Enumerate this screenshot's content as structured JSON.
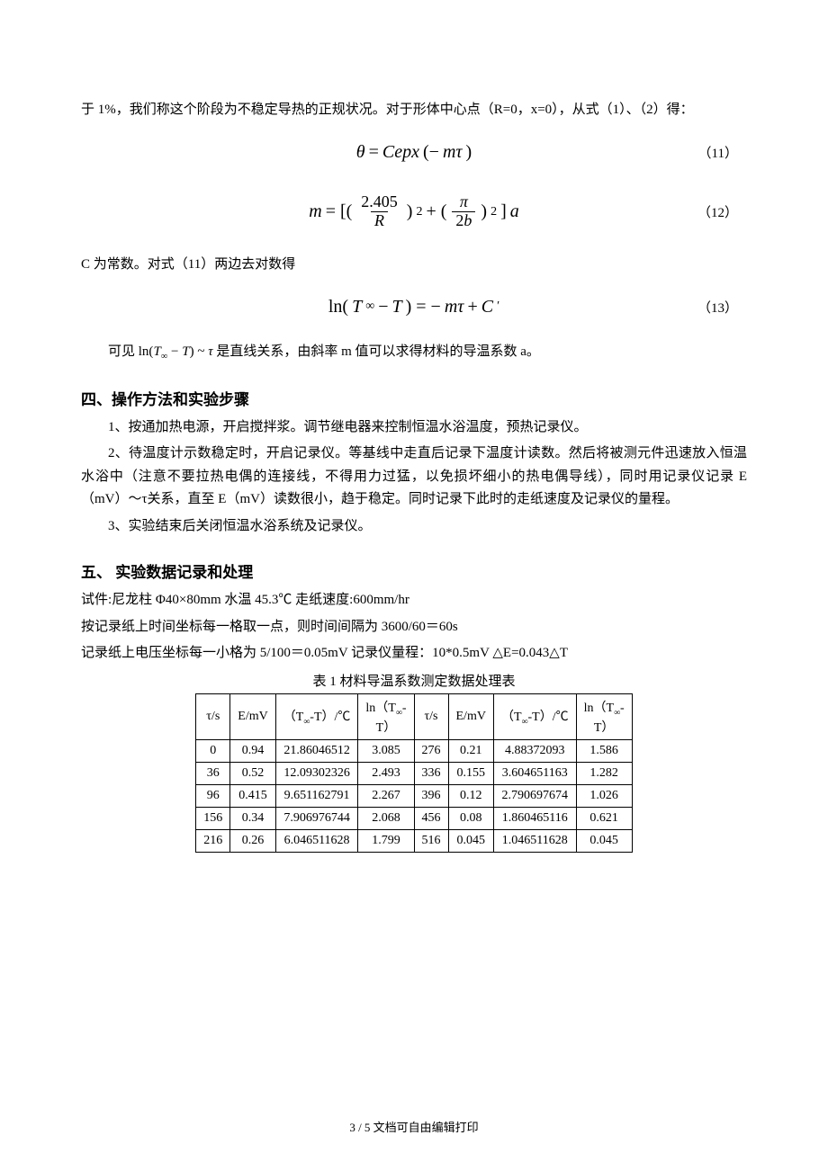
{
  "intro": {
    "p1": "于 1%，我们称这个阶段为不稳定导热的正规状况。对于形体中心点（R=0，x=0），从式（1）、（2）得：",
    "eq11_num": "（11）",
    "eq12_num": "（12）",
    "p2": "C 为常数。对式（11）两边去对数得",
    "eq13_num": "（13）",
    "p3_prefix": "可见",
    "p3_suffix": "是直线关系，由斜率 m 值可以求得材料的导温系数 a。"
  },
  "section4": {
    "title": "四、操作方法和实验步骤",
    "p1": "1、按通加热电源，开启搅拌浆。调节继电器来控制恒温水浴温度，预热记录仪。",
    "p2": "2、待温度计示数稳定时，开启记录仪。等基线中走直后记录下温度计读数。然后将被测元件迅速放入恒温水浴中（注意不要拉热电偶的连接线，不得用力过猛，以免损坏细小的热电偶导线），同时用记录仪记录 E（mV）～τ关系，直至 E（mV）读数很小，趋于稳定。同时记录下此时的走纸速度及记录仪的量程。",
    "p3": "3、实验结束后关闭恒温水浴系统及记录仪。"
  },
  "section5": {
    "title": "五、  实验数据记录和处理",
    "line1": "试件:尼龙柱 Φ40×80mm   水温 45.3℃   走纸速度:600mm/hr",
    "line2": "按记录纸上时间坐标每一格取一点，则时间间隔为 3600/60＝60s",
    "line3": "记录纸上电压坐标每一小格为 5/100＝0.05mV  记录仪量程：10*0.5mV   △E=0.043△T",
    "table_caption": "表 1 材料导温系数测定数据处理表",
    "columns": [
      "τ/s",
      "E/mV",
      "（T∞-T）/℃",
      "ln（T∞-T）",
      "τ/s",
      "E/mV",
      "（T∞-T）/℃",
      "ln（T∞-T）"
    ],
    "rows": [
      [
        "0",
        "0.94",
        "21.86046512",
        "3.085",
        "276",
        "0.21",
        "4.88372093",
        "1.586"
      ],
      [
        "36",
        "0.52",
        "12.09302326",
        "2.493",
        "336",
        "0.155",
        "3.604651163",
        "1.282"
      ],
      [
        "96",
        "0.415",
        "9.651162791",
        "2.267",
        "396",
        "0.12",
        "2.790697674",
        "1.026"
      ],
      [
        "156",
        "0.34",
        "7.906976744",
        "2.068",
        "456",
        "0.08",
        "1.860465116",
        "0.621"
      ],
      [
        "216",
        "0.26",
        "6.046511628",
        "1.799",
        "516",
        "0.045",
        "1.046511628",
        "0.045"
      ]
    ]
  },
  "footer": "3 / 5 文档可自由编辑打印"
}
